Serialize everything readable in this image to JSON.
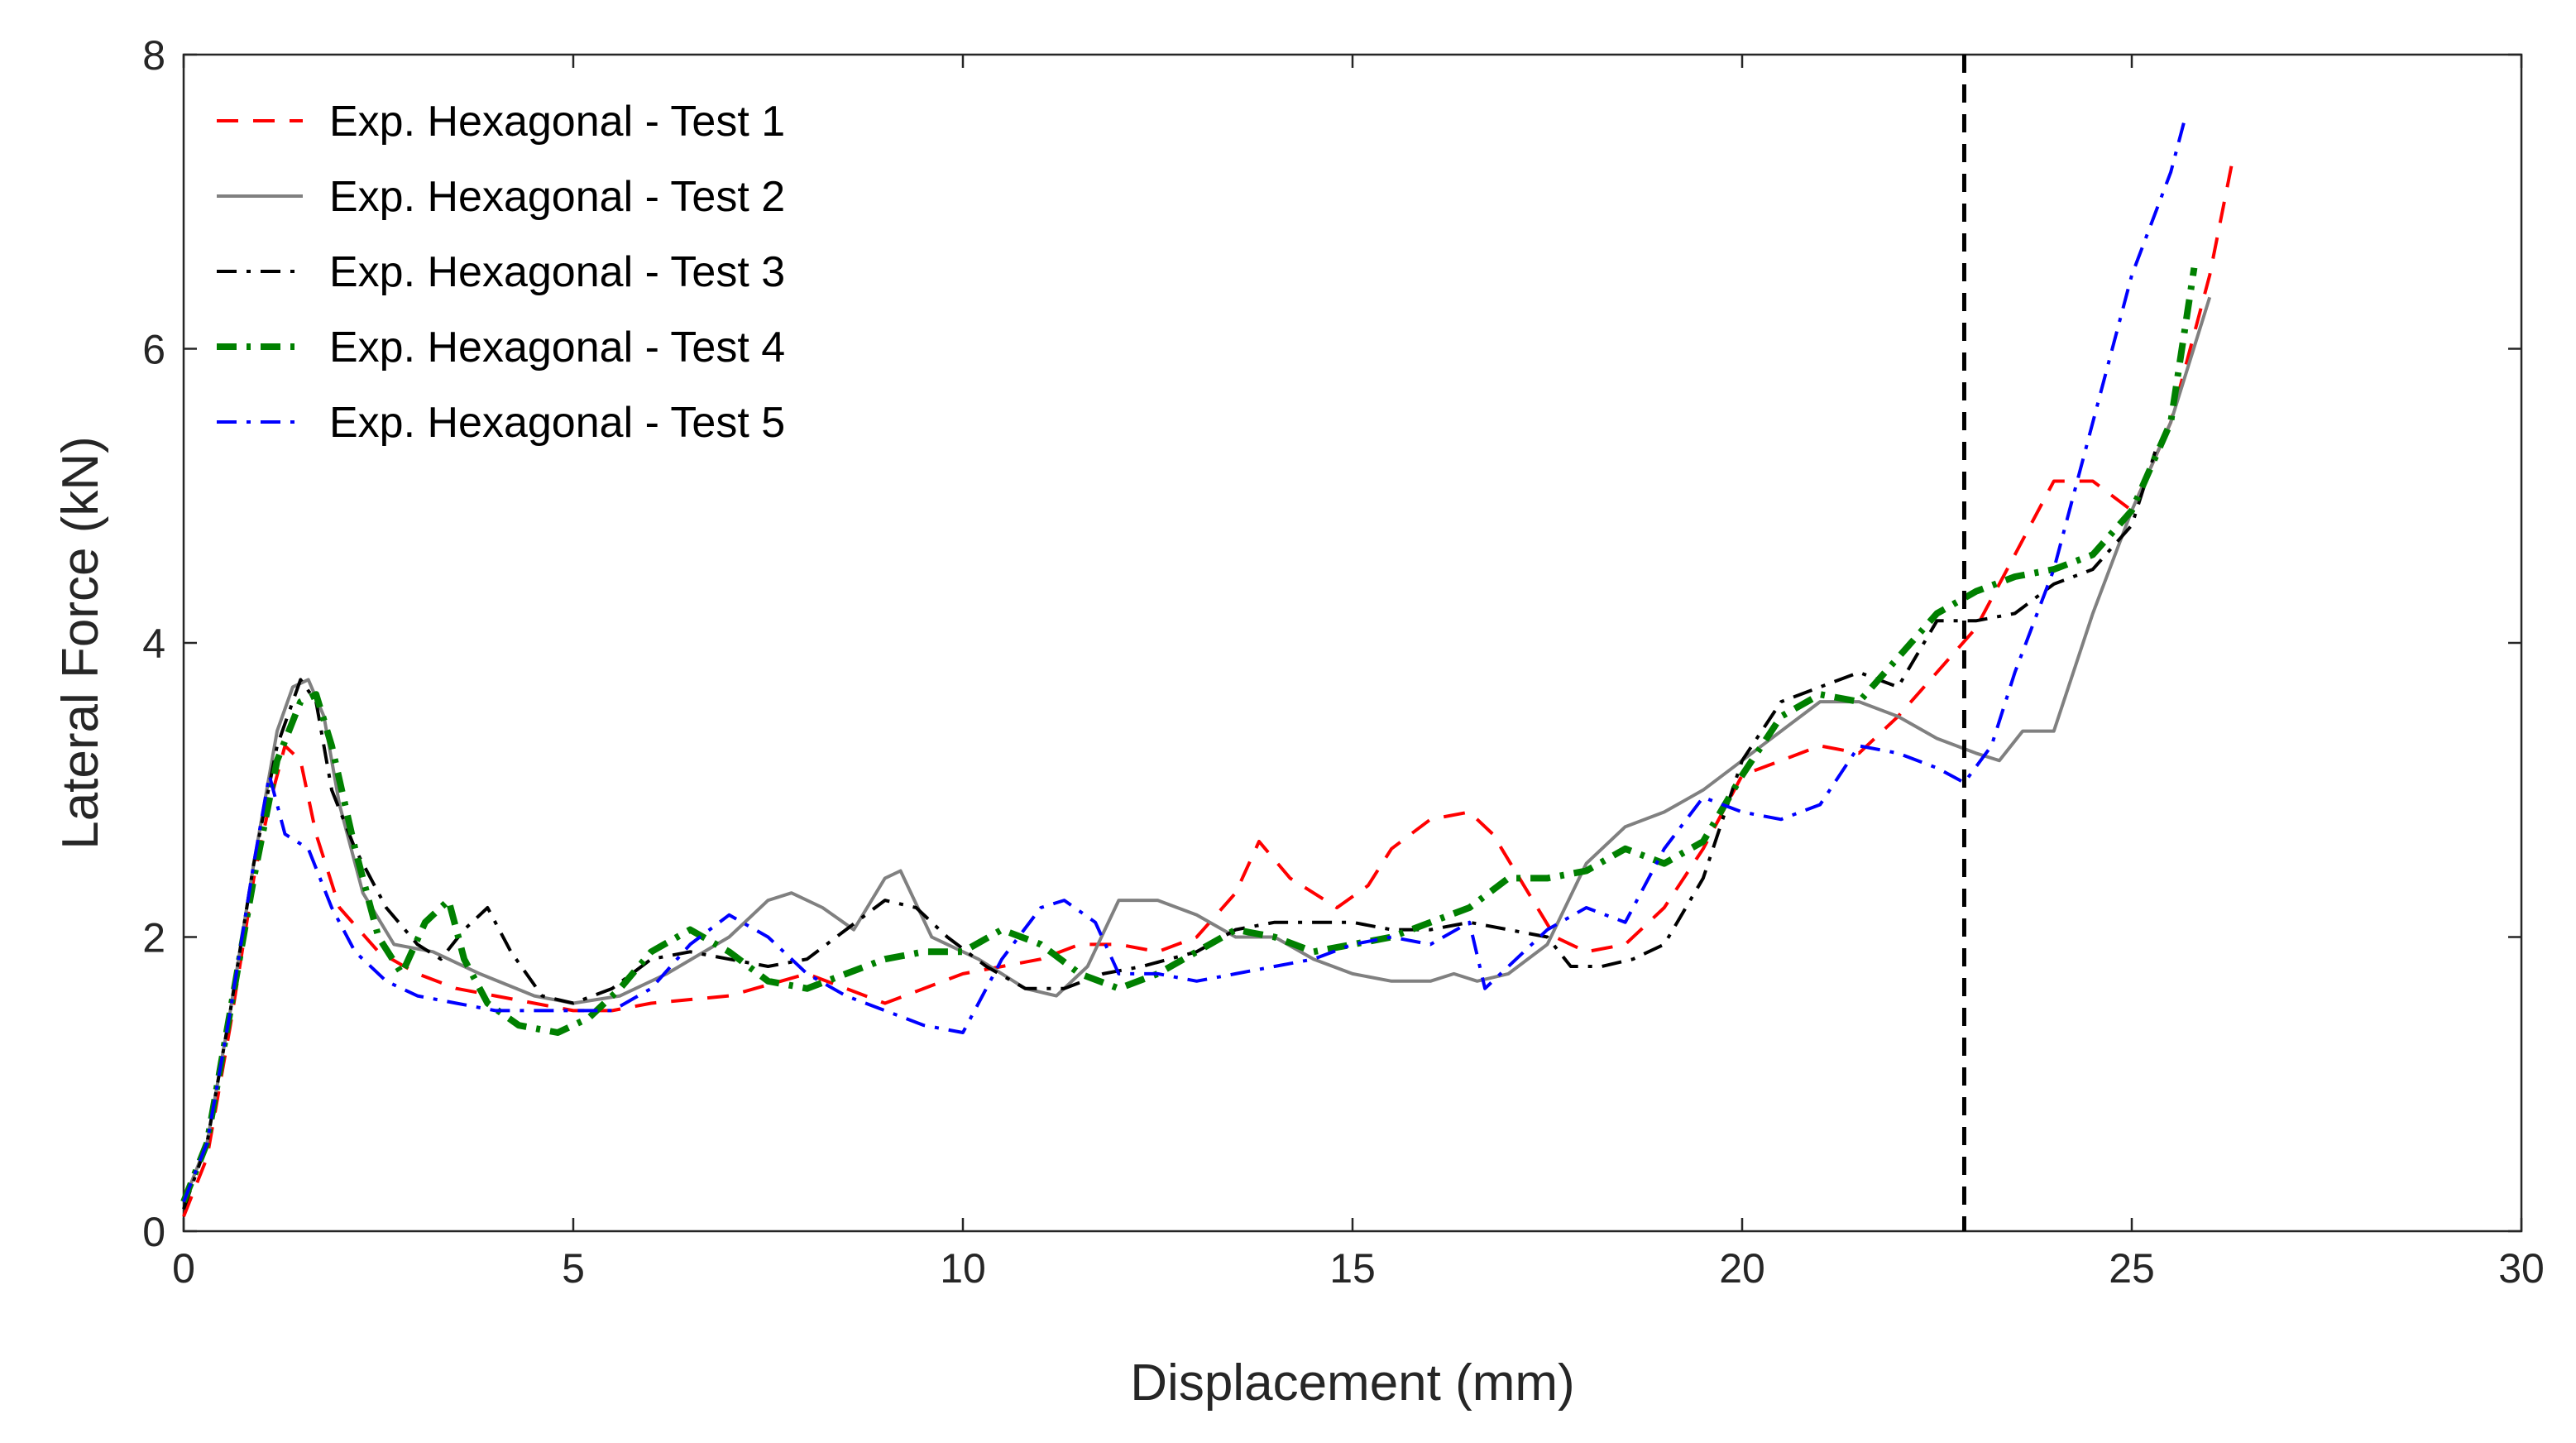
{
  "chart_data": {
    "type": "line",
    "title": "",
    "xlabel": "Displacement (mm)",
    "ylabel": "Lateral Force (kN)",
    "xlim": [
      0,
      30
    ],
    "ylim": [
      0,
      8
    ],
    "xticks": [
      0,
      5,
      10,
      15,
      20,
      25,
      30
    ],
    "yticks": [
      0,
      2,
      4,
      6,
      8
    ],
    "grid": false,
    "legend_position": "top-left",
    "annotations": [
      {
        "type": "vertical-line",
        "x": 22.85,
        "style": "dashed",
        "color": "#000000"
      }
    ],
    "series": [
      {
        "name": "Exp. Hexagonal - Test 1",
        "color": "#ff0000",
        "dash": "dashed",
        "width": "normal",
        "x": [
          0,
          0.3,
          0.6,
          0.9,
          1.1,
          1.3,
          1.5,
          1.7,
          2.0,
          2.5,
          3.0,
          3.5,
          4.0,
          4.5,
          5.0,
          5.5,
          6.0,
          7.0,
          8.0,
          9.0,
          10.0,
          11.0,
          11.5,
          12.0,
          12.5,
          13.0,
          13.5,
          13.8,
          14.2,
          14.8,
          15.2,
          15.5,
          16.0,
          16.5,
          16.8,
          17.2,
          17.6,
          18.0,
          18.5,
          19.0,
          19.5,
          20.0,
          20.5,
          21.0,
          21.5,
          22.0,
          22.5,
          23.0,
          23.5,
          24.0,
          24.5,
          25.0,
          25.5,
          26.0,
          26.3
        ],
        "y": [
          0.1,
          0.5,
          1.4,
          2.4,
          2.9,
          3.3,
          3.2,
          2.7,
          2.2,
          1.9,
          1.75,
          1.65,
          1.6,
          1.55,
          1.5,
          1.5,
          1.55,
          1.6,
          1.75,
          1.55,
          1.75,
          1.85,
          1.95,
          1.95,
          1.9,
          2.0,
          2.3,
          2.65,
          2.4,
          2.2,
          2.35,
          2.6,
          2.8,
          2.85,
          2.7,
          2.35,
          2.0,
          1.9,
          1.95,
          2.2,
          2.6,
          3.1,
          3.2,
          3.3,
          3.25,
          3.5,
          3.8,
          4.1,
          4.6,
          5.1,
          5.1,
          4.9,
          5.5,
          6.5,
          7.3
        ]
      },
      {
        "name": "Exp. Hexagonal - Test 2",
        "color": "#808080",
        "dash": "solid",
        "width": "normal",
        "x": [
          0,
          0.3,
          0.6,
          0.9,
          1.2,
          1.4,
          1.6,
          1.8,
          2.0,
          2.3,
          2.7,
          3.2,
          3.8,
          4.5,
          5.0,
          5.6,
          6.2,
          7.0,
          7.5,
          7.8,
          8.2,
          8.6,
          9.0,
          9.2,
          9.6,
          10.2,
          10.8,
          11.2,
          11.6,
          12.0,
          12.5,
          13.0,
          13.5,
          14.0,
          14.5,
          15.0,
          15.5,
          16.0,
          16.3,
          16.6,
          17.0,
          17.5,
          18.0,
          18.5,
          19.0,
          19.5,
          20.0,
          20.5,
          21.0,
          21.5,
          22.0,
          22.5,
          23.0,
          23.3,
          23.6,
          24.0,
          24.5,
          25.0,
          25.5,
          26.0
        ],
        "y": [
          0.2,
          0.6,
          1.5,
          2.5,
          3.4,
          3.7,
          3.75,
          3.5,
          2.9,
          2.3,
          1.95,
          1.9,
          1.75,
          1.6,
          1.55,
          1.6,
          1.75,
          2.0,
          2.25,
          2.3,
          2.2,
          2.05,
          2.4,
          2.45,
          2.0,
          1.85,
          1.65,
          1.6,
          1.8,
          2.25,
          2.25,
          2.15,
          2.0,
          2.0,
          1.85,
          1.75,
          1.7,
          1.7,
          1.75,
          1.7,
          1.75,
          1.95,
          2.5,
          2.75,
          2.85,
          3.0,
          3.2,
          3.4,
          3.6,
          3.6,
          3.5,
          3.35,
          3.25,
          3.2,
          3.4,
          3.4,
          4.2,
          4.9,
          5.5,
          6.35
        ]
      },
      {
        "name": "Exp. Hexagonal - Test 3",
        "color": "#000000",
        "dash": "dashdot",
        "width": "normal",
        "x": [
          0,
          0.3,
          0.6,
          0.9,
          1.2,
          1.5,
          1.7,
          1.9,
          2.2,
          2.6,
          3.0,
          3.3,
          3.6,
          3.9,
          4.2,
          4.6,
          5.0,
          5.5,
          6.0,
          6.5,
          7.0,
          7.5,
          8.0,
          8.5,
          9.0,
          9.4,
          9.8,
          10.3,
          10.8,
          11.3,
          11.8,
          12.3,
          13.0,
          13.5,
          14.0,
          14.5,
          15.0,
          15.5,
          16.0,
          16.5,
          17.0,
          17.5,
          17.8,
          18.2,
          18.6,
          19.0,
          19.5,
          20.0,
          20.5,
          21.0,
          21.5,
          22.0,
          22.5,
          23.0,
          23.5,
          24.0,
          24.5,
          25.0,
          25.3
        ],
        "y": [
          0.15,
          0.6,
          1.5,
          2.5,
          3.3,
          3.75,
          3.6,
          3.0,
          2.6,
          2.2,
          1.95,
          1.85,
          2.05,
          2.2,
          1.9,
          1.6,
          1.55,
          1.65,
          1.85,
          1.9,
          1.85,
          1.8,
          1.85,
          2.05,
          2.25,
          2.2,
          2.0,
          1.8,
          1.65,
          1.65,
          1.75,
          1.8,
          1.9,
          2.05,
          2.1,
          2.1,
          2.1,
          2.05,
          2.05,
          2.1,
          2.05,
          2.0,
          1.8,
          1.8,
          1.85,
          1.95,
          2.4,
          3.2,
          3.6,
          3.7,
          3.8,
          3.7,
          4.15,
          4.15,
          4.2,
          4.4,
          4.5,
          4.8,
          5.3
        ]
      },
      {
        "name": "Exp. Hexagonal - Test 4",
        "color": "#008000",
        "dash": "dashdot",
        "width": "thick",
        "x": [
          0,
          0.3,
          0.6,
          0.9,
          1.2,
          1.5,
          1.7,
          1.9,
          2.2,
          2.5,
          2.8,
          3.1,
          3.4,
          3.6,
          3.9,
          4.3,
          4.8,
          5.2,
          5.6,
          6.0,
          6.5,
          7.0,
          7.5,
          8.0,
          8.5,
          9.0,
          9.5,
          10.0,
          10.5,
          11.0,
          11.5,
          12.0,
          12.5,
          13.0,
          13.5,
          14.0,
          14.5,
          15.0,
          15.5,
          16.0,
          16.5,
          17.0,
          17.5,
          18.0,
          18.5,
          19.0,
          19.5,
          20.0,
          20.5,
          21.0,
          21.5,
          22.0,
          22.5,
          23.0,
          23.5,
          24.0,
          24.5,
          25.0,
          25.5,
          25.8
        ],
        "y": [
          0.2,
          0.6,
          1.5,
          2.4,
          3.2,
          3.6,
          3.65,
          3.3,
          2.6,
          2.0,
          1.75,
          2.1,
          2.25,
          1.85,
          1.55,
          1.4,
          1.35,
          1.45,
          1.65,
          1.9,
          2.05,
          1.9,
          1.7,
          1.65,
          1.75,
          1.85,
          1.9,
          1.9,
          2.05,
          1.95,
          1.75,
          1.65,
          1.75,
          1.9,
          2.05,
          2.0,
          1.9,
          1.95,
          2.0,
          2.1,
          2.2,
          2.4,
          2.4,
          2.45,
          2.6,
          2.5,
          2.65,
          3.1,
          3.5,
          3.65,
          3.6,
          3.9,
          4.2,
          4.35,
          4.45,
          4.5,
          4.6,
          4.9,
          5.5,
          6.55
        ]
      },
      {
        "name": "Exp. Hexagonal - Test 5",
        "color": "#0000ff",
        "dash": "dashdot",
        "width": "normal",
        "x": [
          0,
          0.3,
          0.6,
          0.9,
          1.1,
          1.3,
          1.6,
          1.9,
          2.2,
          2.6,
          3.0,
          3.5,
          4.0,
          4.5,
          5.0,
          5.5,
          6.0,
          6.5,
          7.0,
          7.5,
          8.0,
          8.5,
          9.0,
          9.5,
          10.0,
          10.5,
          11.0,
          11.3,
          11.7,
          12.0,
          12.5,
          13.0,
          13.5,
          14.0,
          14.5,
          15.0,
          15.5,
          16.0,
          16.5,
          16.7,
          17.0,
          17.5,
          18.0,
          18.5,
          19.0,
          19.5,
          20.0,
          20.5,
          21.0,
          21.5,
          22.0,
          22.5,
          22.85,
          23.2,
          23.5,
          24.0,
          24.5,
          25.0,
          25.5,
          25.7
        ],
        "y": [
          0.2,
          0.6,
          1.5,
          2.5,
          3.1,
          2.7,
          2.6,
          2.2,
          1.9,
          1.7,
          1.6,
          1.55,
          1.5,
          1.5,
          1.5,
          1.5,
          1.65,
          1.95,
          2.15,
          2.0,
          1.75,
          1.6,
          1.5,
          1.4,
          1.35,
          1.85,
          2.2,
          2.25,
          2.1,
          1.75,
          1.75,
          1.7,
          1.75,
          1.8,
          1.85,
          1.95,
          2.0,
          1.95,
          2.1,
          1.65,
          1.8,
          2.05,
          2.2,
          2.1,
          2.6,
          2.95,
          2.85,
          2.8,
          2.9,
          3.3,
          3.25,
          3.15,
          3.05,
          3.3,
          3.8,
          4.5,
          5.5,
          6.5,
          7.2,
          7.6
        ]
      }
    ]
  }
}
